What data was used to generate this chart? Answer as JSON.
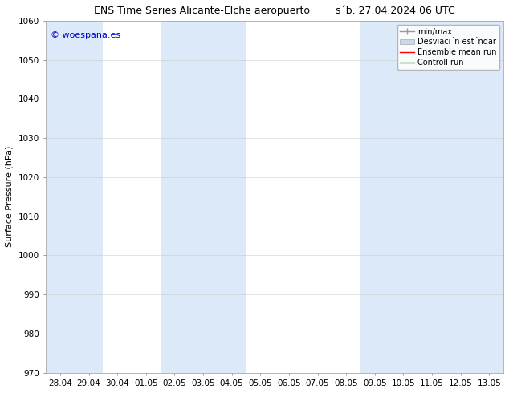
{
  "title_left": "ENS Time Series Alicante-Elche aeropuerto",
  "title_right": "s´b. 27.04.2024 06 UTC",
  "ylabel": "Surface Pressure (hPa)",
  "ylim": [
    970,
    1060
  ],
  "yticks": [
    970,
    980,
    990,
    1000,
    1010,
    1020,
    1030,
    1040,
    1050,
    1060
  ],
  "xtick_labels": [
    "28.04",
    "29.04",
    "30.04",
    "01.05",
    "02.05",
    "03.05",
    "04.05",
    "05.05",
    "06.05",
    "07.05",
    "08.05",
    "09.05",
    "10.05",
    "11.05",
    "12.05",
    "13.05"
  ],
  "background_color": "#ffffff",
  "plot_bg_color": "#ffffff",
  "shade_color": "#dce9f8",
  "watermark": "© woespana.es",
  "watermark_color": "#0000cc",
  "legend_entries": [
    "min/max",
    "Desviaci´n est´ndar",
    "Ensemble mean run",
    "Controll run"
  ],
  "legend_colors": [
    "#999999",
    "#c8d8ea",
    "#ff0000",
    "#008000"
  ],
  "n_xticks": 16,
  "blue_columns": [
    0,
    1,
    4,
    5,
    6,
    11,
    12,
    13,
    14,
    15
  ],
  "title_fontsize": 9,
  "legend_fontsize": 7,
  "ylabel_fontsize": 8,
  "tick_fontsize": 7.5
}
